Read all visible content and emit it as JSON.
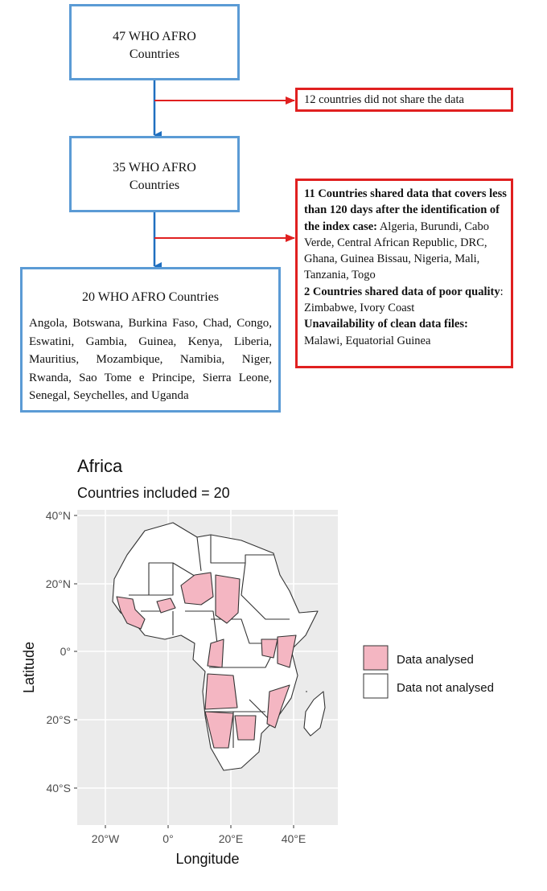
{
  "flowchart": {
    "box1": {
      "line1": "47 WHO AFRO",
      "line2": "Countries"
    },
    "box2": {
      "line1": "35 WHO AFRO",
      "line2": "Countries"
    },
    "box3": {
      "title": "20 WHO AFRO Countries",
      "countries": "Angola, Botswana, Burkina Faso, Chad, Congo, Eswatini, Gambia, Guinea, Kenya, Liberia, Mauritius, Mozambique, Namibia, Niger, Rwanda, Sao Tome e Principe, Sierra Leone, Senegal, Seychelles, and Uganda"
    },
    "excluded1": "12 countries did not share the data",
    "excluded2": {
      "heading1": "11 Countries shared data that covers less than 120 days after the identification of the index case:",
      "list1": " Algeria, Burundi, Cabo Verde, Central African Republic, DRC, Ghana, Guinea Bissau, Nigeria, Mali, Tanzania, Togo",
      "heading2": "2 Countries shared data of poor quality",
      "list2": ": Zimbabwe, Ivory Coast",
      "heading3": "Unavailability of clean data files:",
      "list3": " Malawi, Equatorial Guinea"
    }
  },
  "map": {
    "title": "Africa",
    "subtitle": "Countries included = 20",
    "xlabel": "Longitude",
    "ylabel": "Latitude",
    "x_ticks": [
      "20°W",
      "0°",
      "20°E",
      "40°E"
    ],
    "y_ticks": [
      "40°N",
      "20°N",
      "0°",
      "20°S",
      "40°S"
    ],
    "legend": [
      {
        "label": "Data analysed",
        "color": "#f4b6c2"
      },
      {
        "label": "Data not analysed",
        "color": "#ffffff"
      }
    ],
    "panel_color": "#ebebeb"
  }
}
